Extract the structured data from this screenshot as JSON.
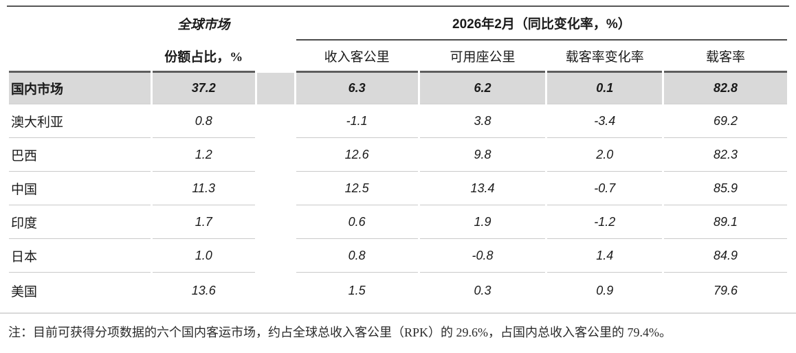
{
  "table": {
    "group_headers": {
      "global_market": "全球市场",
      "period": "2026年2月（同比变化率，%）"
    },
    "sub_headers": {
      "share": "份额占比，%",
      "rpk": "收入客公里",
      "ask": "可用座公里",
      "plf_change": "载客率变化率",
      "plf": "载客率"
    },
    "rows": [
      {
        "label": "国内市场",
        "share": "37.2",
        "rpk": "6.3",
        "ask": "6.2",
        "plf_change": "0.1",
        "plf": "82.8",
        "highlight": true
      },
      {
        "label": "澳大利亚",
        "share": "0.8",
        "rpk": "-1.1",
        "ask": "3.8",
        "plf_change": "-3.4",
        "plf": "69.2",
        "highlight": false
      },
      {
        "label": "巴西",
        "share": "1.2",
        "rpk": "12.6",
        "ask": "9.8",
        "plf_change": "2.0",
        "plf": "82.3",
        "highlight": false
      },
      {
        "label": "中国",
        "share": "11.3",
        "rpk": "12.5",
        "ask": "13.4",
        "plf_change": "-0.7",
        "plf": "85.9",
        "highlight": false
      },
      {
        "label": "印度",
        "share": "1.7",
        "rpk": "0.6",
        "ask": "1.9",
        "plf_change": "-1.2",
        "plf": "89.1",
        "highlight": false
      },
      {
        "label": "日本",
        "share": "1.0",
        "rpk": "0.8",
        "ask": "-0.8",
        "plf_change": "1.4",
        "plf": "84.9",
        "highlight": false
      },
      {
        "label": "美国",
        "share": "13.6",
        "rpk": "1.5",
        "ask": "0.3",
        "plf_change": "0.9",
        "plf": "79.6",
        "highlight": false
      }
    ]
  },
  "note": "注：目前可获得分项数据的六个国内客运市场，约占全球总收入客公里（RPK）的 29.6%，占国内总收入客公里的 79.4%。",
  "colors": {
    "highlight_row_bg": "#d9d9d9",
    "rule_dark": "#555555",
    "rule_medium": "#5d5d5d",
    "rule_light": "#c9c9c9",
    "note_rule": "#d9d9d9",
    "text": "#1a1a1a"
  }
}
